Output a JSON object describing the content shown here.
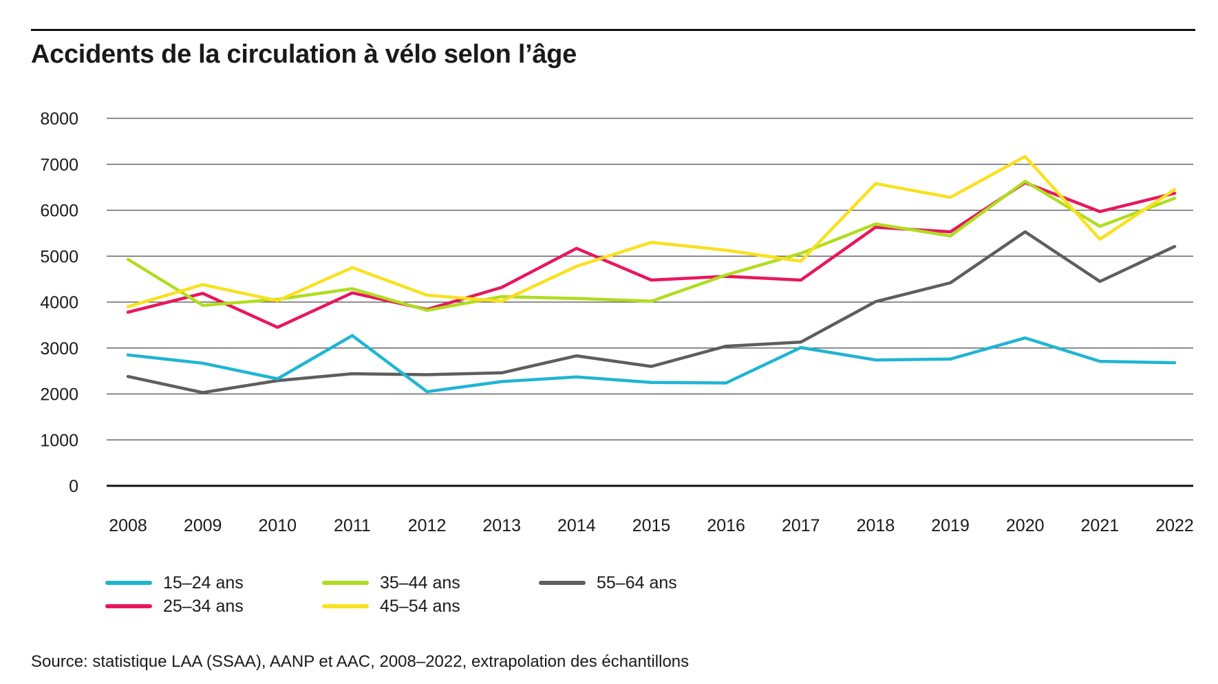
{
  "header": {
    "title": "Accidents de la circulation à vélo selon l’âge"
  },
  "footer": {
    "source": "Source: statistique LAA (SSAA), AANP et AAC, 2008–2022, extrapolation des échantillons"
  },
  "chart_data": {
    "type": "line",
    "title": "Accidents de la circulation à vélo selon l’âge",
    "xlabel": "",
    "ylabel": "",
    "ylim": [
      0,
      8000
    ],
    "yticks": [
      "0",
      "1000",
      "2000",
      "3000",
      "4000",
      "5000",
      "6000",
      "7000",
      "8000"
    ],
    "grid": true,
    "legend_position": "bottom",
    "categories": [
      "2008",
      "2009",
      "2010",
      "2011",
      "2012",
      "2013",
      "2014",
      "2015",
      "2016",
      "2017",
      "2018",
      "2019",
      "2020",
      "2021",
      "2022"
    ],
    "series": [
      {
        "name": "15–24 ans",
        "color": "#1fb5d3",
        "values": [
          2850,
          2670,
          2330,
          3270,
          2050,
          2270,
          2370,
          2250,
          2240,
          3010,
          2740,
          2760,
          3220,
          2710,
          2680
        ]
      },
      {
        "name": "25–34 ans",
        "color": "#e8175d",
        "values": [
          3780,
          4190,
          3450,
          4200,
          3840,
          4320,
          5170,
          4480,
          4560,
          4480,
          5630,
          5530,
          6600,
          5970,
          6370
        ]
      },
      {
        "name": "35–44 ans",
        "color": "#b0dd1f",
        "values": [
          4930,
          3930,
          4060,
          4290,
          3820,
          4120,
          4080,
          4020,
          4590,
          5060,
          5700,
          5440,
          6630,
          5650,
          6260
        ]
      },
      {
        "name": "45–54 ans",
        "color": "#f9e11e",
        "values": [
          3900,
          4380,
          4030,
          4750,
          4150,
          4020,
          4780,
          5300,
          5130,
          4890,
          6580,
          6280,
          7170,
          5370,
          6450
        ]
      },
      {
        "name": "55–64 ans",
        "color": "#5e5e5e",
        "values": [
          2380,
          2030,
          2290,
          2440,
          2420,
          2460,
          2830,
          2600,
          3040,
          3130,
          4010,
          4420,
          5530,
          4450,
          5210
        ]
      }
    ]
  }
}
